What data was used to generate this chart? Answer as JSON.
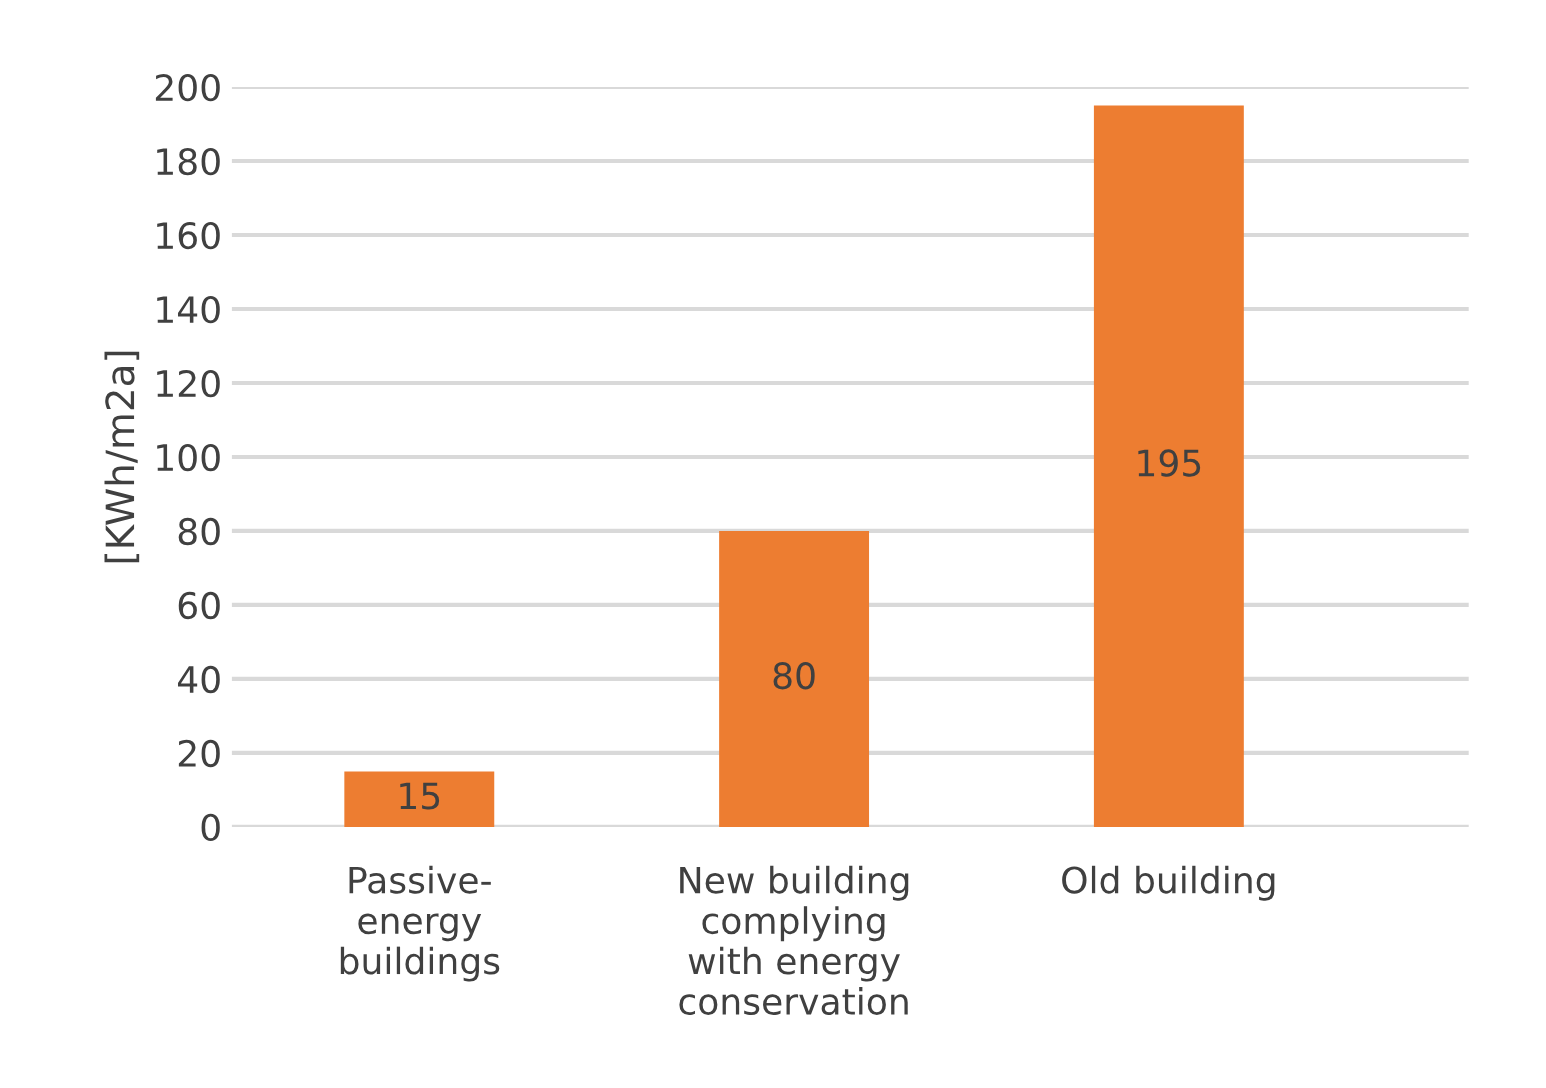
{
  "chart_data": {
    "type": "bar",
    "ylabel": "[KWh/m2a]",
    "categories": [
      "Passive-\nenergy\nbuildings",
      "New building\ncomplying\nwith energy\nconservation",
      "Old building"
    ],
    "values": [
      15,
      80,
      195
    ],
    "color": "#ed7d31",
    "ylim": [
      0,
      200
    ],
    "yticks": [
      0,
      20,
      40,
      60,
      80,
      100,
      120,
      140,
      160,
      180,
      200
    ],
    "grid": "y",
    "data_labels": true
  }
}
